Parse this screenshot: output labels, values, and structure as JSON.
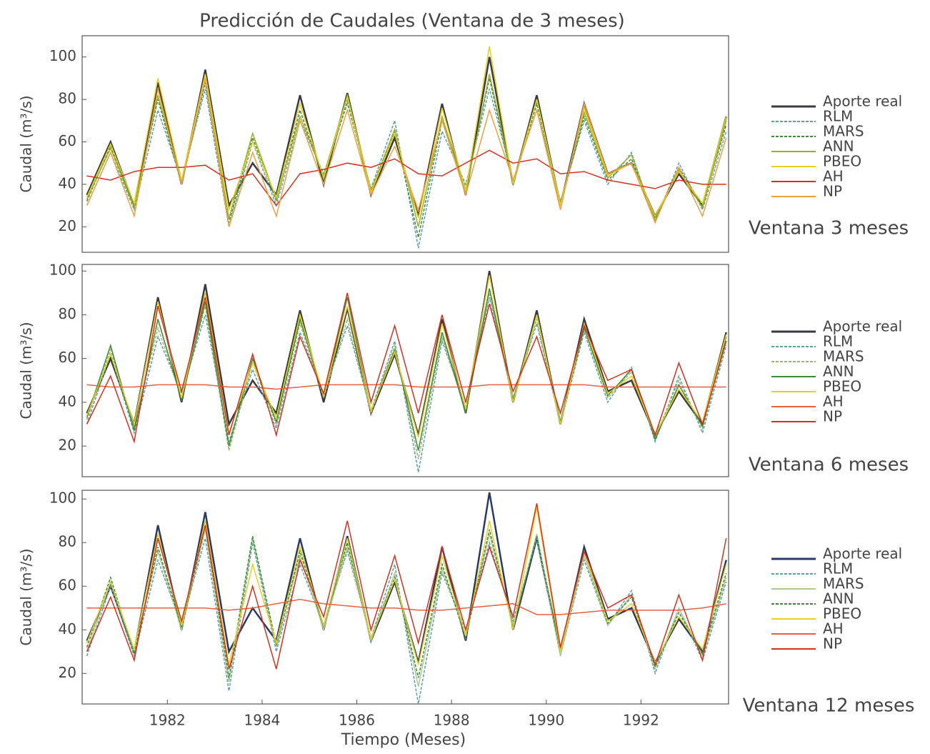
{
  "chart_data": [
    {
      "type": "line",
      "title": "Predicción de Caudales (Ventana de 3 meses)",
      "ylabel": "Caudal (m³/s)",
      "annotation": "Ventana 3 meses",
      "x": [
        1980.3,
        1980.8,
        1981.3,
        1981.8,
        1982.3,
        1982.8,
        1983.3,
        1983.8,
        1984.3,
        1984.8,
        1985.3,
        1985.8,
        1986.3,
        1986.8,
        1987.3,
        1987.8,
        1988.3,
        1988.8,
        1989.3,
        1989.8,
        1990.3,
        1990.8,
        1991.3,
        1991.8,
        1992.3,
        1992.8,
        1993.3,
        1993.8
      ],
      "xlim": [
        1980.2,
        1993.85
      ],
      "ylim": [
        8,
        110
      ],
      "yticks": [
        20,
        40,
        60,
        80,
        100
      ],
      "series": [
        {
          "name": "Aporte real",
          "color": "#3a3a44",
          "dashed": false,
          "values": [
            35,
            60,
            30,
            88,
            40,
            94,
            30,
            50,
            35,
            82,
            40,
            83,
            35,
            62,
            25,
            78,
            35,
            100,
            40,
            82,
            30,
            78,
            45,
            50,
            25,
            45,
            30,
            72
          ]
        },
        {
          "name": "RLM",
          "color": "#5aa0a8",
          "dashed": true,
          "values": [
            30,
            55,
            28,
            75,
            42,
            85,
            20,
            60,
            30,
            70,
            45,
            78,
            38,
            70,
            10,
            65,
            40,
            85,
            42,
            75,
            32,
            70,
            40,
            55,
            22,
            50,
            28,
            65
          ]
        },
        {
          "name": "MARS",
          "color": "#3f8a3a",
          "dashed": true,
          "values": [
            32,
            58,
            30,
            80,
            40,
            88,
            22,
            62,
            32,
            75,
            42,
            80,
            36,
            65,
            15,
            70,
            38,
            90,
            40,
            78,
            30,
            72,
            42,
            52,
            24,
            48,
            30,
            68
          ]
        },
        {
          "name": "ANN",
          "color": "#9ab030",
          "dashed": false,
          "values": [
            33,
            57,
            29,
            82,
            41,
            90,
            24,
            64,
            33,
            72,
            44,
            82,
            37,
            66,
            20,
            72,
            36,
            92,
            41,
            80,
            31,
            74,
            43,
            54,
            23,
            47,
            29,
            70
          ]
        },
        {
          "name": "PBEO",
          "color": "#e8d020",
          "dashed": false,
          "values": [
            34,
            59,
            31,
            90,
            42,
            92,
            28,
            60,
            34,
            78,
            43,
            81,
            36,
            64,
            24,
            76,
            37,
            105,
            40,
            80,
            30,
            76,
            44,
            50,
            25,
            46,
            31,
            72
          ]
        },
        {
          "name": "AH",
          "color": "#d83020",
          "dashed": false,
          "values": [
            44,
            42,
            46,
            48,
            48,
            49,
            42,
            45,
            30,
            45,
            47,
            50,
            48,
            52,
            45,
            44,
            50,
            56,
            50,
            52,
            45,
            46,
            42,
            40,
            38,
            42,
            40,
            40
          ]
        },
        {
          "name": "NP",
          "color": "#f0a040",
          "dashed": false,
          "values": [
            30,
            55,
            25,
            85,
            40,
            90,
            20,
            55,
            25,
            70,
            40,
            75,
            35,
            58,
            28,
            70,
            35,
            75,
            42,
            75,
            28,
            78,
            45,
            50,
            22,
            48,
            25,
            62
          ]
        }
      ]
    },
    {
      "type": "line",
      "ylabel": "Caudal (m³/s)",
      "annotation": "Ventana 6 meses",
      "x": [
        1980.3,
        1980.8,
        1981.3,
        1981.8,
        1982.3,
        1982.8,
        1983.3,
        1983.8,
        1984.3,
        1984.8,
        1985.3,
        1985.8,
        1986.3,
        1986.8,
        1987.3,
        1987.8,
        1988.3,
        1988.8,
        1989.3,
        1989.8,
        1990.3,
        1990.8,
        1991.3,
        1991.8,
        1992.3,
        1992.8,
        1993.3,
        1993.8
      ],
      "xlim": [
        1980.2,
        1993.85
      ],
      "ylim": [
        6,
        103
      ],
      "yticks": [
        20,
        40,
        60,
        80,
        100
      ],
      "series": [
        {
          "name": "Aporte real",
          "color": "#3a3a44",
          "dashed": false,
          "values": [
            35,
            60,
            30,
            88,
            40,
            94,
            30,
            50,
            35,
            82,
            40,
            83,
            35,
            62,
            25,
            78,
            35,
            100,
            40,
            82,
            30,
            78,
            45,
            50,
            25,
            45,
            30,
            72
          ]
        },
        {
          "name": "RLM",
          "color": "#5aa0a8",
          "dashed": true,
          "values": [
            30,
            62,
            26,
            70,
            44,
            80,
            22,
            55,
            28,
            72,
            44,
            75,
            36,
            68,
            8,
            68,
            38,
            88,
            42,
            76,
            30,
            72,
            40,
            56,
            22,
            52,
            26,
            66
          ]
        },
        {
          "name": "MARS",
          "color": "#9ab868",
          "dashed": true,
          "values": [
            32,
            64,
            28,
            74,
            42,
            84,
            18,
            58,
            30,
            76,
            42,
            78,
            35,
            66,
            14,
            70,
            36,
            90,
            40,
            78,
            30,
            74,
            42,
            54,
            24,
            50,
            28,
            68
          ]
        },
        {
          "name": "ANN",
          "color": "#3f8a3a",
          "dashed": false,
          "values": [
            33,
            66,
            27,
            78,
            41,
            86,
            20,
            60,
            31,
            78,
            43,
            88,
            36,
            64,
            18,
            72,
            35,
            92,
            41,
            80,
            31,
            74,
            43,
            55,
            23,
            48,
            29,
            70
          ]
        },
        {
          "name": "PBEO",
          "color": "#e8d020",
          "dashed": false,
          "values": [
            34,
            62,
            30,
            86,
            42,
            90,
            26,
            58,
            33,
            80,
            43,
            84,
            36,
            63,
            24,
            76,
            37,
            98,
            40,
            80,
            30,
            76,
            44,
            52,
            25,
            46,
            31,
            71
          ]
        },
        {
          "name": "AH",
          "color": "#e86040",
          "dashed": false,
          "values": [
            48,
            47,
            47,
            48,
            48,
            48,
            47,
            47,
            46,
            47,
            48,
            48,
            48,
            48,
            47,
            47,
            47,
            48,
            48,
            48,
            48,
            48,
            47,
            47,
            47,
            47,
            47,
            47
          ]
        },
        {
          "name": "NP",
          "color": "#d83020",
          "dashed": false,
          "values": [
            30,
            52,
            22,
            84,
            45,
            88,
            25,
            62,
            25,
            70,
            44,
            90,
            40,
            75,
            35,
            80,
            40,
            85,
            45,
            70,
            35,
            75,
            50,
            55,
            25,
            58,
            30,
            68
          ]
        }
      ]
    },
    {
      "type": "line",
      "ylabel": "Caudal (m³/s)",
      "annotation": "Ventana 12 meses",
      "xlabel": "Tiempo (Meses)",
      "x": [
        1980.3,
        1980.8,
        1981.3,
        1981.8,
        1982.3,
        1982.8,
        1983.3,
        1983.8,
        1984.3,
        1984.8,
        1985.3,
        1985.8,
        1986.3,
        1986.8,
        1987.3,
        1987.8,
        1988.3,
        1988.8,
        1989.3,
        1989.8,
        1990.3,
        1990.8,
        1991.3,
        1991.8,
        1992.3,
        1992.8,
        1993.3,
        1993.8
      ],
      "xlim": [
        1980.2,
        1993.85
      ],
      "ylim": [
        6,
        104
      ],
      "yticks": [
        20,
        40,
        60,
        80,
        100
      ],
      "xticks": [
        1982,
        1984,
        1986,
        1988,
        1990,
        1992
      ],
      "series": [
        {
          "name": "Aporte real",
          "color": "#2a3a60",
          "dashed": false,
          "values": [
            35,
            60,
            30,
            88,
            40,
            94,
            30,
            50,
            35,
            82,
            40,
            83,
            35,
            62,
            25,
            78,
            35,
            103,
            40,
            82,
            30,
            78,
            45,
            50,
            25,
            45,
            30,
            72
          ]
        },
        {
          "name": "RLM",
          "color": "#5aa0a8",
          "dashed": true,
          "values": [
            28,
            60,
            28,
            72,
            42,
            82,
            12,
            80,
            30,
            70,
            42,
            76,
            36,
            70,
            6,
            66,
            40,
            80,
            44,
            82,
            28,
            72,
            42,
            58,
            20,
            50,
            26,
            62
          ]
        },
        {
          "name": "MARS",
          "color": "#b0c890",
          "dashed": false,
          "values": [
            30,
            62,
            30,
            76,
            40,
            86,
            16,
            82,
            32,
            74,
            40,
            78,
            35,
            66,
            14,
            68,
            38,
            84,
            42,
            84,
            28,
            74,
            42,
            56,
            22,
            50,
            28,
            64
          ]
        },
        {
          "name": "ANN",
          "color": "#3f8a3a",
          "dashed": true,
          "values": [
            32,
            64,
            29,
            78,
            41,
            88,
            18,
            83,
            33,
            76,
            42,
            80,
            36,
            64,
            18,
            70,
            36,
            86,
            41,
            83,
            30,
            76,
            43,
            55,
            23,
            48,
            29,
            66
          ]
        },
        {
          "name": "PBEO",
          "color": "#e8d020",
          "dashed": false,
          "values": [
            34,
            62,
            31,
            84,
            42,
            90,
            24,
            70,
            34,
            78,
            42,
            82,
            36,
            63,
            24,
            74,
            37,
            90,
            40,
            96,
            30,
            76,
            44,
            52,
            25,
            46,
            31,
            70
          ]
        },
        {
          "name": "AH",
          "color": "#e86040",
          "dashed": false,
          "values": [
            50,
            50,
            50,
            50,
            50,
            50,
            49,
            50,
            52,
            54,
            52,
            51,
            50,
            50,
            49,
            49,
            50,
            51,
            52,
            47,
            47,
            48,
            49,
            49,
            49,
            49,
            50,
            52
          ]
        },
        {
          "name": "NP",
          "color": "#d83020",
          "dashed": false,
          "values": [
            30,
            55,
            26,
            82,
            44,
            88,
            22,
            60,
            22,
            72,
            46,
            90,
            40,
            74,
            34,
            78,
            40,
            78,
            46,
            98,
            32,
            76,
            50,
            56,
            24,
            56,
            26,
            82
          ]
        }
      ]
    }
  ]
}
